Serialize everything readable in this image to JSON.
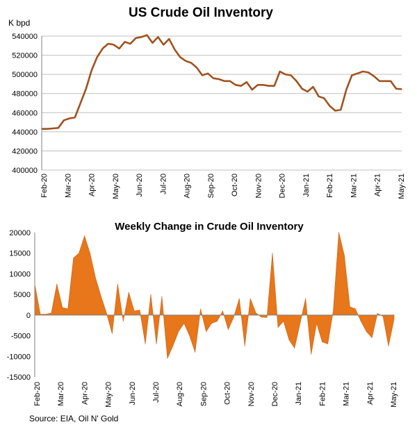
{
  "source_text": "Source: EIA, Oil N' Gold",
  "chart_data": [
    {
      "type": "line",
      "title": "US Crude Oil Inventory",
      "ylabel": "K bpd",
      "ylim": [
        400000,
        540000
      ],
      "y_ticks": [
        400000,
        420000,
        440000,
        460000,
        480000,
        500000,
        520000,
        540000
      ],
      "y_tick_labels": [
        "400000",
        "420000",
        "440000",
        "460000",
        "480000",
        "500000",
        "520000",
        "540000"
      ],
      "x_tick_labels": [
        "Feb-20",
        "Mar-20",
        "Apr-20",
        "May-20",
        "Jun-20",
        "Jul-20",
        "Aug-20",
        "Sep-20",
        "Oct-20",
        "Nov-20",
        "Dec-20",
        "Jan-21",
        "Feb-21",
        "Mar-21",
        "Apr-21",
        "May-21"
      ],
      "grid": true,
      "color": "#a0521e",
      "series": [
        {
          "values": [
            443000,
            443000,
            443500,
            444000,
            452000,
            454000,
            455000,
            470000,
            485000,
            504000,
            518000,
            527000,
            532000,
            531000,
            527000,
            534000,
            532000,
            538000,
            539000,
            541000,
            533000,
            539000,
            531000,
            537000,
            526000,
            518000,
            514000,
            512000,
            507000,
            499000,
            501000,
            496000,
            495000,
            493000,
            493000,
            489000,
            488000,
            492000,
            484000,
            489000,
            489000,
            488000,
            488000,
            503000,
            500000,
            499000,
            493000,
            485000,
            482000,
            487000,
            477000,
            475000,
            467000,
            462000,
            463000,
            484000,
            499000,
            501000,
            503000,
            502000,
            498000,
            493000,
            493000,
            493000,
            485000,
            484500
          ]
        }
      ]
    },
    {
      "type": "area",
      "title": "Weekly Change in Crude Oil Inventory",
      "ylim": [
        -15000,
        20000
      ],
      "y_ticks": [
        -15000,
        -10000,
        -5000,
        0,
        5000,
        10000,
        15000,
        20000
      ],
      "y_tick_labels": [
        "-15000",
        "-10000",
        "-5000",
        "0",
        "5000",
        "10000",
        "15000",
        "20000"
      ],
      "x_tick_labels": [
        "Feb-20",
        "Mar-20",
        "Apr-20",
        "May-20",
        "Jun-20",
        "Jul-20",
        "Aug-20",
        "Sep-20",
        "Oct-20",
        "Nov-20",
        "Dec-20",
        "Jan-21",
        "Feb-21",
        "Mar-21",
        "Apr-21",
        "May-21"
      ],
      "grid": false,
      "color": "#e8761a",
      "series": [
        {
          "values": [
            7500,
            200,
            200,
            500,
            7500,
            1800,
            1500,
            13800,
            15000,
            19200,
            15000,
            9000,
            4500,
            400,
            -4500,
            7500,
            -1500,
            5500,
            1000,
            1200,
            -7000,
            5000,
            -7000,
            4500,
            -10500,
            -7500,
            -4000,
            -2000,
            -5000,
            -9000,
            1500,
            -4000,
            -2000,
            -1500,
            1000,
            -3500,
            -500,
            4000,
            -7500,
            4000,
            500,
            -500,
            -600,
            15000,
            -3000,
            -1500,
            -6000,
            -8000,
            -2000,
            4000,
            -9500,
            -2000,
            -6500,
            -7000,
            1000,
            20000,
            14500,
            2000,
            1500,
            -1500,
            -4000,
            -5500,
            400,
            -300,
            -7500,
            -1000
          ]
        }
      ]
    }
  ]
}
